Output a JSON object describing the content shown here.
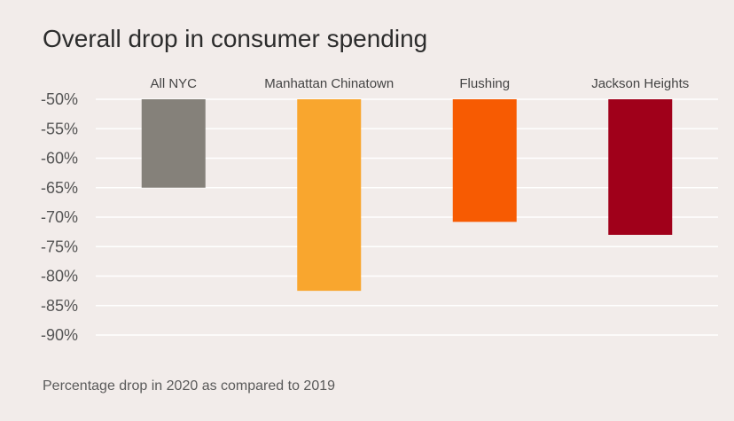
{
  "chart_data": {
    "type": "bar",
    "title": "Overall drop in consumer spending",
    "footnote": "Percentage drop in 2020 as compared to 2019",
    "categories": [
      "All NYC",
      "Manhattan Chinatown",
      "Flushing",
      "Jackson Heights"
    ],
    "values": [
      -65,
      -82.5,
      -70.8,
      -73
    ],
    "colors": [
      "#85817a",
      "#f9a62e",
      "#f75b02",
      "#a0001a"
    ],
    "baseline": -50,
    "ylim": [
      -90,
      -50
    ],
    "yticks": [
      -50,
      -55,
      -60,
      -65,
      -70,
      -75,
      -80,
      -85,
      -90
    ],
    "ytick_labels": [
      "-50%",
      "-55%",
      "-60%",
      "-65%",
      "-70%",
      "-75%",
      "-80%",
      "-85%",
      "-90%"
    ],
    "category_labels_position": "top",
    "grid": true,
    "gridline_color": "#ffffff"
  }
}
